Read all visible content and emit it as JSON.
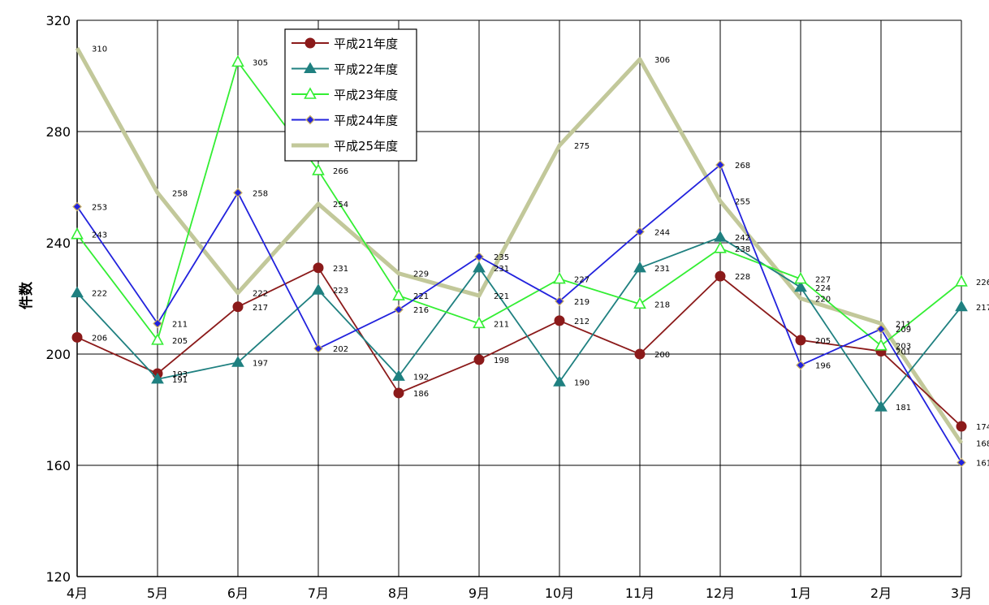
{
  "chart_data": {
    "type": "line",
    "ylabel": "件数",
    "xlabel": "",
    "ylim": [
      120,
      320
    ],
    "yticks": [
      120,
      160,
      200,
      240,
      280,
      320
    ],
    "grid": true,
    "legend_position": "top-center",
    "categories": [
      "4月",
      "5月",
      "6月",
      "7月",
      "8月",
      "9月",
      "10月",
      "11月",
      "12月",
      "1月",
      "2月",
      "3月"
    ],
    "series": [
      {
        "name": "平成21年度",
        "color": "#8B1A1A",
        "marker": "circle",
        "values": [
          206,
          193,
          217,
          231,
          186,
          198,
          212,
          200,
          228,
          205,
          201,
          174
        ]
      },
      {
        "name": "平成22年度",
        "color": "#1F8080",
        "marker": "triangle",
        "values": [
          222,
          191,
          197,
          223,
          192,
          231,
          190,
          231,
          242,
          224,
          181,
          217
        ]
      },
      {
        "name": "平成23年度",
        "color": "#33EE33",
        "marker": "triangle-open",
        "values": [
          243,
          205,
          305,
          266,
          221,
          211,
          227,
          218,
          238,
          227,
          203,
          226
        ]
      },
      {
        "name": "平成24年度",
        "color": "#2222DD",
        "marker": "diamond",
        "values": [
          253,
          211,
          258,
          202,
          216,
          235,
          219,
          244,
          268,
          196,
          209,
          161
        ]
      },
      {
        "name": "平成25年度",
        "color": "#C2C89A",
        "marker": "none",
        "values": [
          310,
          258,
          222,
          254,
          229,
          221,
          275,
          306,
          255,
          220,
          211,
          168
        ]
      }
    ]
  }
}
